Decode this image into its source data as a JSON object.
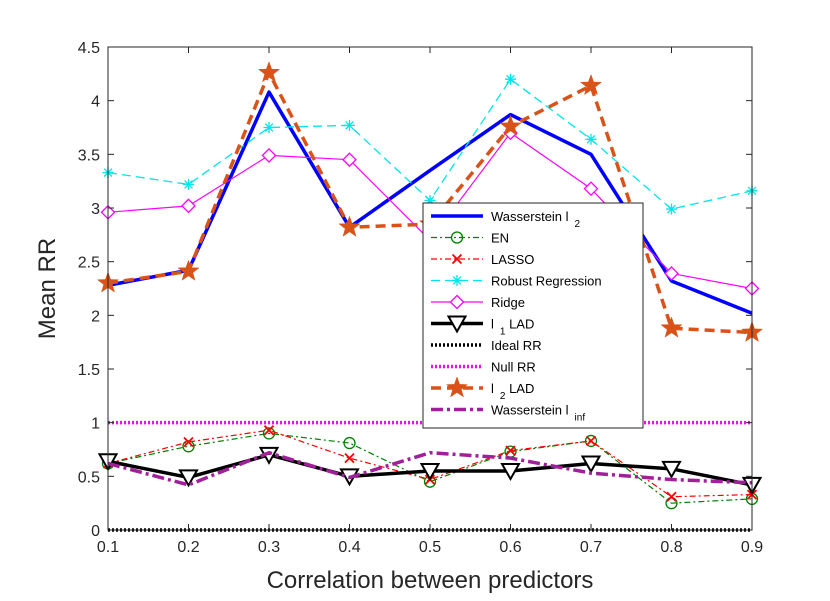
{
  "chart_data": {
    "type": "line",
    "xlabel": "Correlation between predictors",
    "ylabel": "Mean RR",
    "xlim": [
      0.1,
      0.9
    ],
    "ylim": [
      0,
      4.5
    ],
    "x_ticks": [
      "0.1",
      "0.2",
      "0.3",
      "0.4",
      "0.5",
      "0.6",
      "0.7",
      "0.8",
      "0.9"
    ],
    "y_ticks": [
      "0",
      "0.5",
      "1",
      "1.5",
      "2",
      "2.5",
      "3",
      "3.5",
      "4",
      "4.5"
    ],
    "x": [
      0.1,
      0.2,
      0.3,
      0.4,
      0.5,
      0.6,
      0.7,
      0.8,
      0.9
    ],
    "grid": false,
    "legend_position": "center-right",
    "series": [
      {
        "name": "Wasserstein l",
        "sub": "2",
        "color": "#0000ff",
        "dash": "",
        "width": 3.5,
        "marker": "none",
        "values": [
          2.28,
          2.42,
          4.08,
          2.82,
          3.35,
          3.87,
          3.5,
          2.32,
          2.02
        ]
      },
      {
        "name": "EN",
        "sub": "",
        "color": "#008000",
        "dash": "6,3,2,3",
        "width": 1.2,
        "marker": "circle",
        "values": [
          0.62,
          0.78,
          0.9,
          0.81,
          0.45,
          0.73,
          0.83,
          0.25,
          0.29
        ]
      },
      {
        "name": "LASSO",
        "sub": "",
        "color": "#ff0000",
        "dash": "6,3,2,3",
        "width": 1.2,
        "marker": "x",
        "values": [
          0.62,
          0.82,
          0.93,
          0.67,
          0.47,
          0.74,
          0.83,
          0.31,
          0.33
        ]
      },
      {
        "name": "Robust Regression",
        "sub": "",
        "color": "#00e5ee",
        "dash": "9,5",
        "width": 1.3,
        "marker": "asterisk",
        "values": [
          3.33,
          3.22,
          3.75,
          3.77,
          3.07,
          4.2,
          3.64,
          2.99,
          3.16
        ]
      },
      {
        "name": "Ridge",
        "sub": "",
        "color": "#ff00ff",
        "dash": "",
        "width": 1.2,
        "marker": "diamond",
        "values": [
          2.96,
          3.02,
          3.49,
          3.45,
          2.7,
          3.7,
          3.18,
          2.39,
          2.25
        ]
      },
      {
        "name": "l",
        "sub": "1",
        "suffix": " LAD",
        "color": "#000000",
        "dash": "",
        "width": 3.5,
        "marker": "triangle-down",
        "values": [
          0.64,
          0.49,
          0.7,
          0.5,
          0.55,
          0.55,
          0.62,
          0.57,
          0.42
        ]
      },
      {
        "name": "Ideal RR",
        "sub": "",
        "color": "#000000",
        "dash": "2,2",
        "width": 3.5,
        "marker": "none",
        "values": [
          0,
          0,
          0,
          0,
          0,
          0,
          0,
          0,
          0
        ]
      },
      {
        "name": "Null RR",
        "sub": "",
        "color": "#ff00ff",
        "dash": "2,2",
        "width": 3.5,
        "marker": "none",
        "values": [
          1,
          1,
          1,
          1,
          1,
          1,
          1,
          1,
          1
        ]
      },
      {
        "name": "l",
        "sub": "2",
        "suffix": " LAD",
        "color": "#d95319",
        "dash": "10,6",
        "width": 3.5,
        "marker": "star",
        "values": [
          2.3,
          2.41,
          4.26,
          2.82,
          2.85,
          3.76,
          4.14,
          1.88,
          1.84
        ]
      },
      {
        "name": "Wasserstein l",
        "sub": "inf",
        "color": "#a21f9b",
        "dash": "12,4,3,4",
        "width": 3.5,
        "marker": "none",
        "values": [
          0.62,
          0.42,
          0.72,
          0.49,
          0.72,
          0.67,
          0.53,
          0.47,
          0.44
        ]
      }
    ]
  }
}
